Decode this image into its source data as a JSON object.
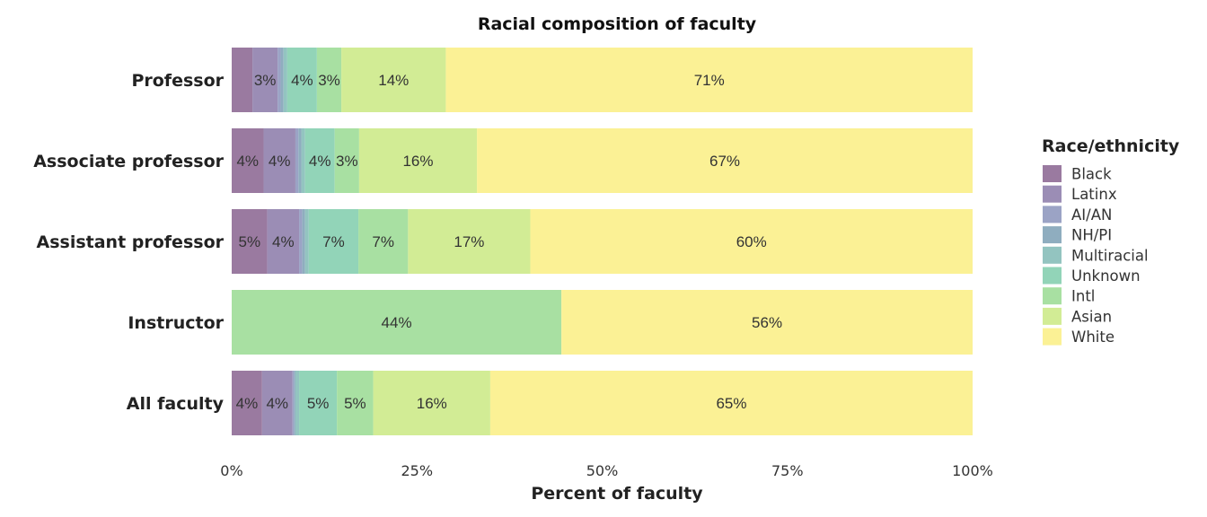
{
  "chart_data": {
    "type": "bar",
    "orientation": "horizontal",
    "stacked": true,
    "title": "Racial composition of faculty",
    "xlabel": "Percent of faculty",
    "ylabel": "",
    "xlim": [
      0,
      100
    ],
    "x_ticks": [
      "0%",
      "25%",
      "50%",
      "75%",
      "100%"
    ],
    "x_tick_values": [
      0,
      25,
      50,
      75,
      100
    ],
    "grid": false,
    "legend_title": "Race/ethnicity",
    "legend_position": "right",
    "categories": [
      "Professor",
      "Associate professor",
      "Assistant professor",
      "Instructor",
      "All faculty"
    ],
    "series": [
      {
        "name": "Black",
        "color": "#9a7aa0",
        "values": [
          2.8,
          4.3,
          4.8,
          0,
          4.1
        ],
        "labels": [
          "",
          "4%",
          "5%",
          "",
          "4%"
        ]
      },
      {
        "name": "Latinx",
        "color": "#9b8db5",
        "values": [
          3.4,
          4.3,
          4.3,
          0,
          4.1
        ],
        "labels": [
          "3%",
          "4%",
          "4%",
          "",
          "4%"
        ]
      },
      {
        "name": "AI/AN",
        "color": "#9ba3c5",
        "values": [
          0.4,
          0.4,
          0.4,
          0,
          0.2
        ],
        "labels": [
          "",
          "",
          "",
          "",
          ""
        ]
      },
      {
        "name": "NH/PI",
        "color": "#8fadbf",
        "values": [
          0.4,
          0.4,
          0.4,
          0,
          0.2
        ],
        "labels": [
          "",
          "",
          "",
          "",
          ""
        ]
      },
      {
        "name": "Multiracial",
        "color": "#93c4c0",
        "values": [
          0.5,
          0.5,
          0.5,
          0,
          0.5
        ],
        "labels": [
          "",
          "",
          "",
          "",
          ""
        ]
      },
      {
        "name": "Unknown",
        "color": "#92d4b8",
        "values": [
          4.0,
          4.0,
          6.7,
          0,
          5.1
        ],
        "labels": [
          "4%",
          "4%",
          "7%",
          "",
          "5%"
        ]
      },
      {
        "name": "Intl",
        "color": "#a8e0a2",
        "values": [
          3.3,
          3.3,
          6.7,
          44.5,
          4.9
        ],
        "labels": [
          "3%",
          "3%",
          "7%",
          "44%",
          "5%"
        ]
      },
      {
        "name": "Asian",
        "color": "#d2ec95",
        "values": [
          14.1,
          15.9,
          16.5,
          0,
          15.8
        ],
        "labels": [
          "14%",
          "16%",
          "17%",
          "",
          "16%"
        ]
      },
      {
        "name": "White",
        "color": "#fbf195",
        "values": [
          71.1,
          66.9,
          59.7,
          55.5,
          65.1
        ],
        "labels": [
          "71%",
          "67%",
          "60%",
          "56%",
          "65%"
        ]
      }
    ]
  }
}
